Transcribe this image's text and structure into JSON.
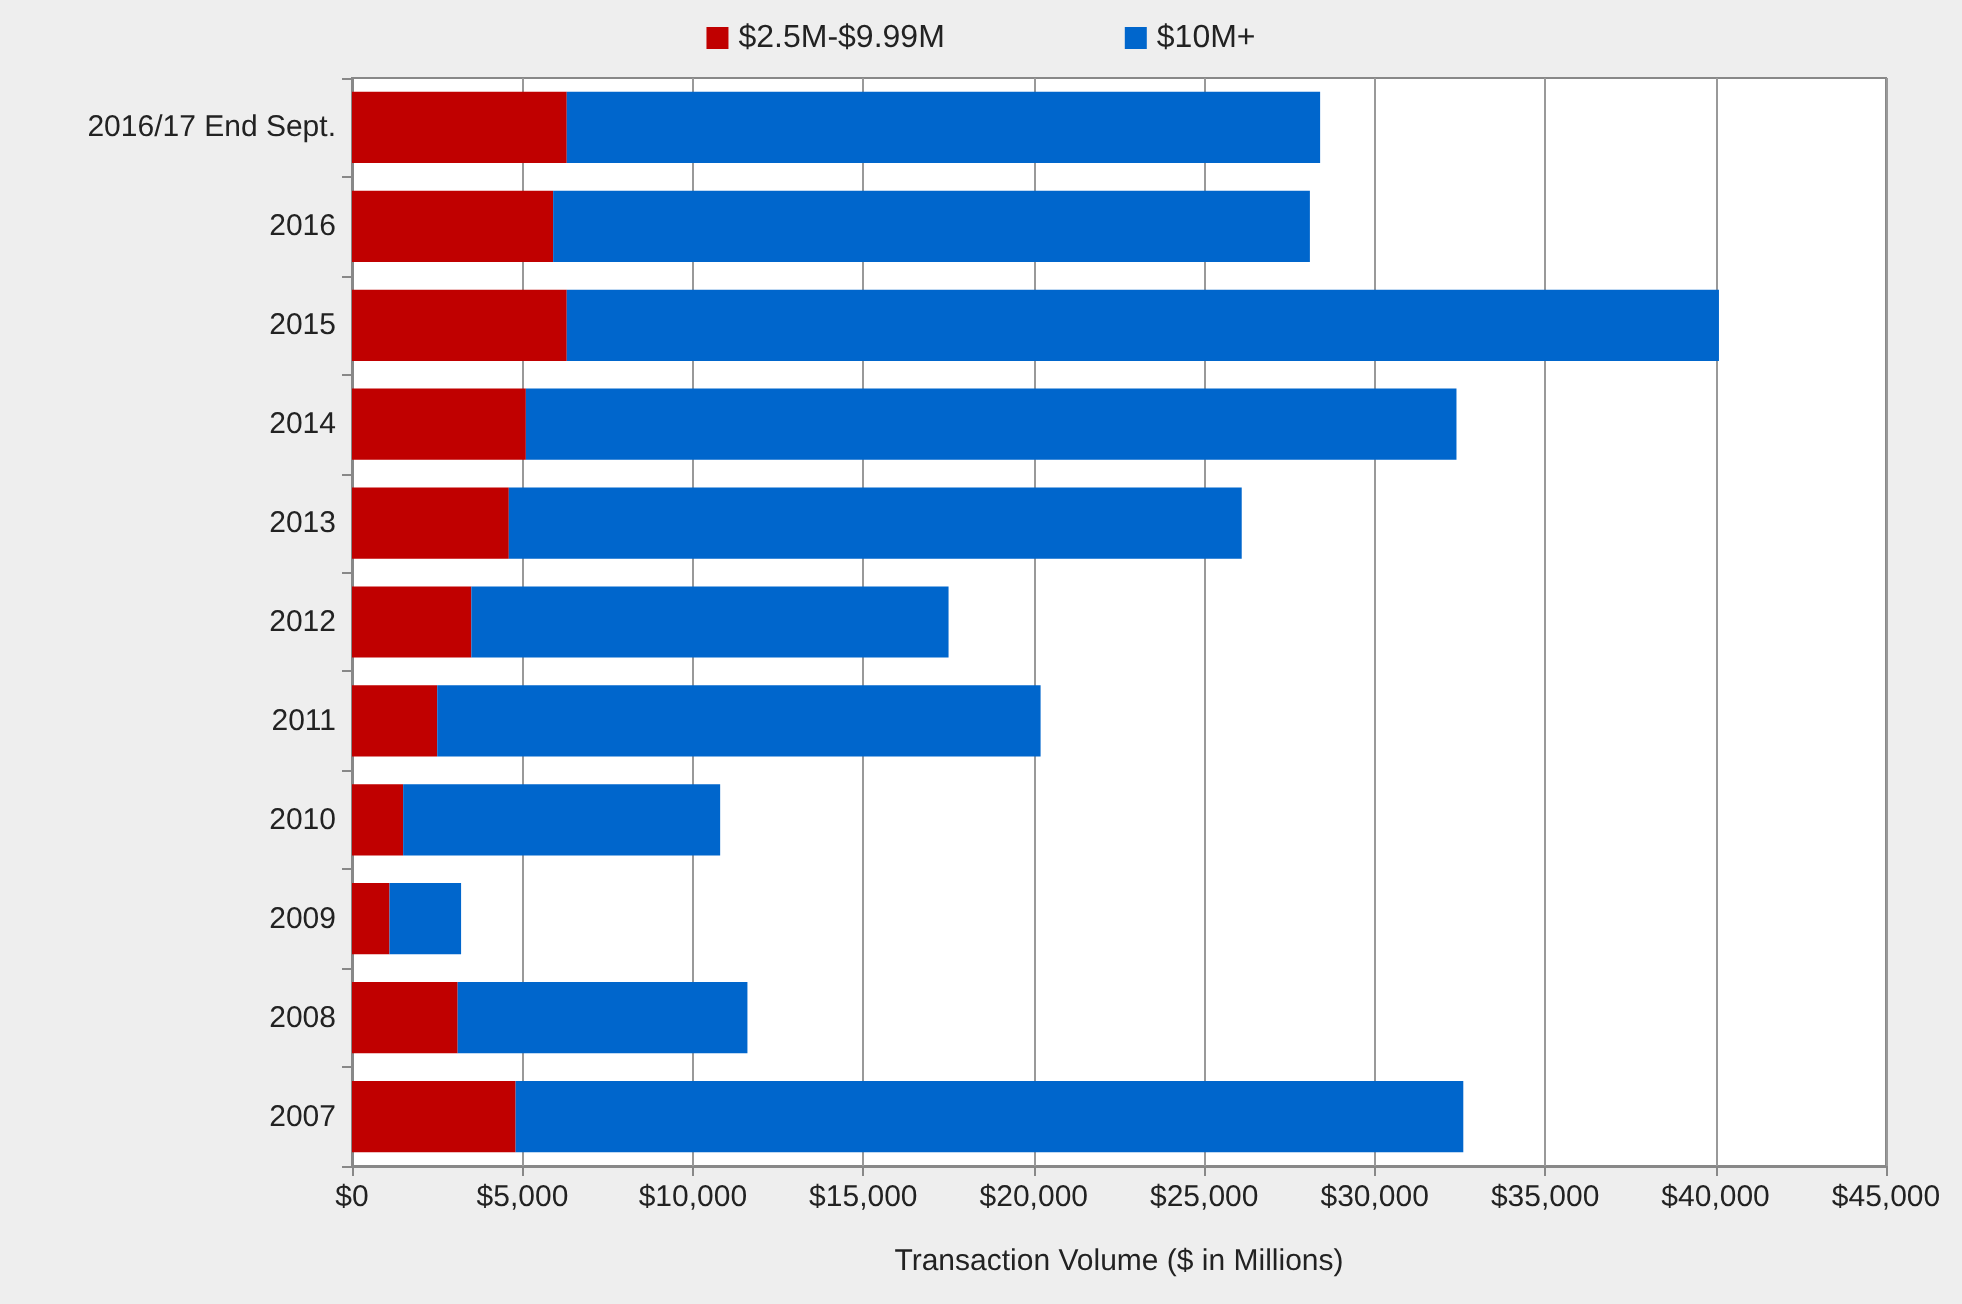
{
  "chart_data": {
    "type": "bar",
    "orientation": "horizontal",
    "stacked": true,
    "xlabel": "Transaction Volume ($ in Millions)",
    "categories": [
      "2016/17 End Sept.",
      "2016",
      "2015",
      "2014",
      "2013",
      "2012",
      "2011",
      "2010",
      "2009",
      "2008",
      "2007"
    ],
    "series": [
      {
        "name": "$2.5M-$9.99M",
        "color": "#c00000",
        "values": [
          6300,
          5900,
          6300,
          5100,
          4600,
          3500,
          2500,
          1500,
          1100,
          3100,
          4800
        ]
      },
      {
        "name": "$10M+",
        "color": "#0066cc",
        "values": [
          22100,
          22200,
          33800,
          27300,
          21500,
          14000,
          17700,
          9300,
          2100,
          8500,
          27800
        ]
      }
    ],
    "xlim": [
      0,
      45000
    ],
    "xticks": [
      {
        "value": 0,
        "label": "$0"
      },
      {
        "value": 5000,
        "label": "$5,000"
      },
      {
        "value": 10000,
        "label": "$10,000"
      },
      {
        "value": 15000,
        "label": "$15,000"
      },
      {
        "value": 20000,
        "label": "$20,000"
      },
      {
        "value": 25000,
        "label": "$25,000"
      },
      {
        "value": 30000,
        "label": "$30,000"
      },
      {
        "value": 35000,
        "label": "$35,000"
      },
      {
        "value": 40000,
        "label": "$40,000"
      },
      {
        "value": 45000,
        "label": "$45,000"
      }
    ],
    "grid": "x",
    "legend": "top"
  }
}
